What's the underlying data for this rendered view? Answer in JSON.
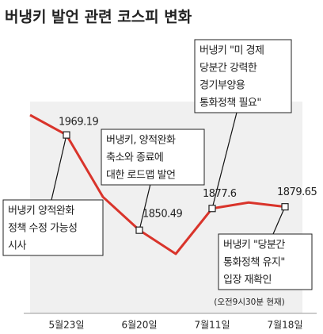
{
  "chart_data": {
    "type": "line",
    "title": "버냉키 발언 관련 코스피 변화",
    "categories": [
      null,
      "5월23일",
      null,
      "6월20일",
      null,
      "7월11일",
      null,
      "7월18일"
    ],
    "values": [
      1994,
      1969.19,
      1892,
      1850.49,
      1821,
      1877.6,
      1885,
      1879.65
    ],
    "value_labels": [
      null,
      "1969.19",
      null,
      "1850.49",
      null,
      "1877.6",
      null,
      "1879.65"
    ],
    "color": "#d9342b",
    "annotations": [
      {
        "point": 1,
        "lines": [
          "버냉키 양적완화",
          "정책 수정 가능성",
          "시사"
        ]
      },
      {
        "point": 3,
        "lines": [
          "버냉키, 양적완화",
          "축소와 종료에",
          "대한 로드맵 발언"
        ]
      },
      {
        "point": 5,
        "lines": [
          "버냉키 \"미 경제",
          "당분간 강력한",
          "경기부양용",
          "통화정책 필요\""
        ]
      },
      {
        "point": 7,
        "lines": [
          "버냉키 \"당분간",
          "통화정책 유지\"",
          "입장 재확인"
        ]
      }
    ],
    "note": "(오전9시30분 현재)"
  }
}
